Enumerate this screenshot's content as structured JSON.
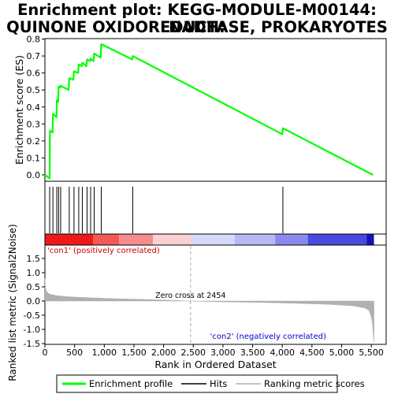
{
  "chart_data": {
    "type": "line",
    "title_lines": [
      "Enrichment plot: KEGG-MODULE-M00144: NADH:",
      "QUINONE OXIDOREDUCTASE, PROKARYOTES"
    ],
    "top_panel": {
      "ylabel": "Enrichment score (ES)",
      "ylim": [
        -0.03,
        0.8
      ],
      "yticks": [
        "0.0",
        "0.1",
        "0.2",
        "0.3",
        "0.4",
        "0.5",
        "0.6",
        "0.7",
        "0.8"
      ],
      "series": [
        {
          "name": "Enrichment profile",
          "color": "#00ff00",
          "x": [
            0,
            80,
            85,
            130,
            135,
            195,
            200,
            225,
            230,
            260,
            265,
            400,
            410,
            480,
            490,
            560,
            570,
            620,
            630,
            700,
            710,
            760,
            770,
            820,
            830,
            940,
            950,
            1470,
            1480,
            4000,
            4010,
            5530
          ],
          "y": [
            0.0,
            -0.02,
            0.26,
            0.25,
            0.36,
            0.34,
            0.44,
            0.43,
            0.52,
            0.515,
            0.525,
            0.5,
            0.57,
            0.56,
            0.61,
            0.6,
            0.65,
            0.64,
            0.66,
            0.64,
            0.68,
            0.67,
            0.685,
            0.67,
            0.715,
            0.69,
            0.77,
            0.68,
            0.7,
            0.24,
            0.275,
            0.0
          ]
        }
      ]
    },
    "hits_panel": {
      "hit_positions": [
        80,
        135,
        200,
        230,
        265,
        410,
        490,
        570,
        630,
        710,
        770,
        830,
        950,
        1480,
        4010
      ]
    },
    "color_band": {
      "segments": [
        {
          "from": 0,
          "to": 810,
          "color": "#ee1a1a"
        },
        {
          "from": 810,
          "to": 1250,
          "color": "#f25a5a"
        },
        {
          "from": 1250,
          "to": 1820,
          "color": "#f68c8c"
        },
        {
          "from": 1820,
          "to": 2454,
          "color": "#fbd0d0"
        },
        {
          "from": 2454,
          "to": 3200,
          "color": "#d8d8fa"
        },
        {
          "from": 3200,
          "to": 3880,
          "color": "#b8b8f4"
        },
        {
          "from": 3880,
          "to": 4430,
          "color": "#8a8aee"
        },
        {
          "from": 4430,
          "to": 5420,
          "color": "#4a4ade"
        },
        {
          "from": 5420,
          "to": 5545,
          "color": "#1a10b8"
        }
      ]
    },
    "bottom_panel": {
      "ylabel": "Ranked list metric (Signal2Noise)",
      "xlabel": "Rank in Ordered Dataset",
      "xlim": [
        0,
        5750
      ],
      "ylim": [
        -1.5,
        1.9
      ],
      "yticks": [
        "1.5",
        "1.0",
        "0.5",
        "0.0",
        "-0.5",
        "-1.0",
        "-1.5"
      ],
      "xticks": [
        "0",
        "500",
        "1,000",
        "1,500",
        "2,000",
        "2,500",
        "3,000",
        "3,500",
        "4,000",
        "4,500",
        "5,000",
        "5,500"
      ],
      "metric_x": [
        0,
        10,
        30,
        60,
        100,
        200,
        400,
        800,
        1200,
        1800,
        2454,
        3000,
        3600,
        4200,
        4800,
        5200,
        5400,
        5460,
        5500,
        5520,
        5535,
        5545
      ],
      "metric_y": [
        0.8,
        0.45,
        0.33,
        0.27,
        0.23,
        0.19,
        0.15,
        0.11,
        0.08,
        0.05,
        0.0,
        -0.03,
        -0.05,
        -0.08,
        -0.12,
        -0.17,
        -0.25,
        -0.33,
        -0.55,
        -0.8,
        -1.2,
        -1.45
      ],
      "fill_color": "#b0b0b0",
      "zero_cross_rank": 2454,
      "annotations": {
        "zero_cross": "Zero cross at 2454",
        "pos_label": "'con1' (positively correlated)",
        "neg_label": "'con2' (negatively correlated)"
      },
      "pos_label_color": "#cc0000",
      "neg_label_color": "#0000cc"
    },
    "legend": {
      "position": "bottom",
      "entries": [
        {
          "label": "Enrichment profile",
          "color": "#00ff00"
        },
        {
          "label": "Hits",
          "color": "#000000"
        },
        {
          "label": "Ranking metric scores",
          "color": "#b0b0b0"
        }
      ]
    }
  }
}
